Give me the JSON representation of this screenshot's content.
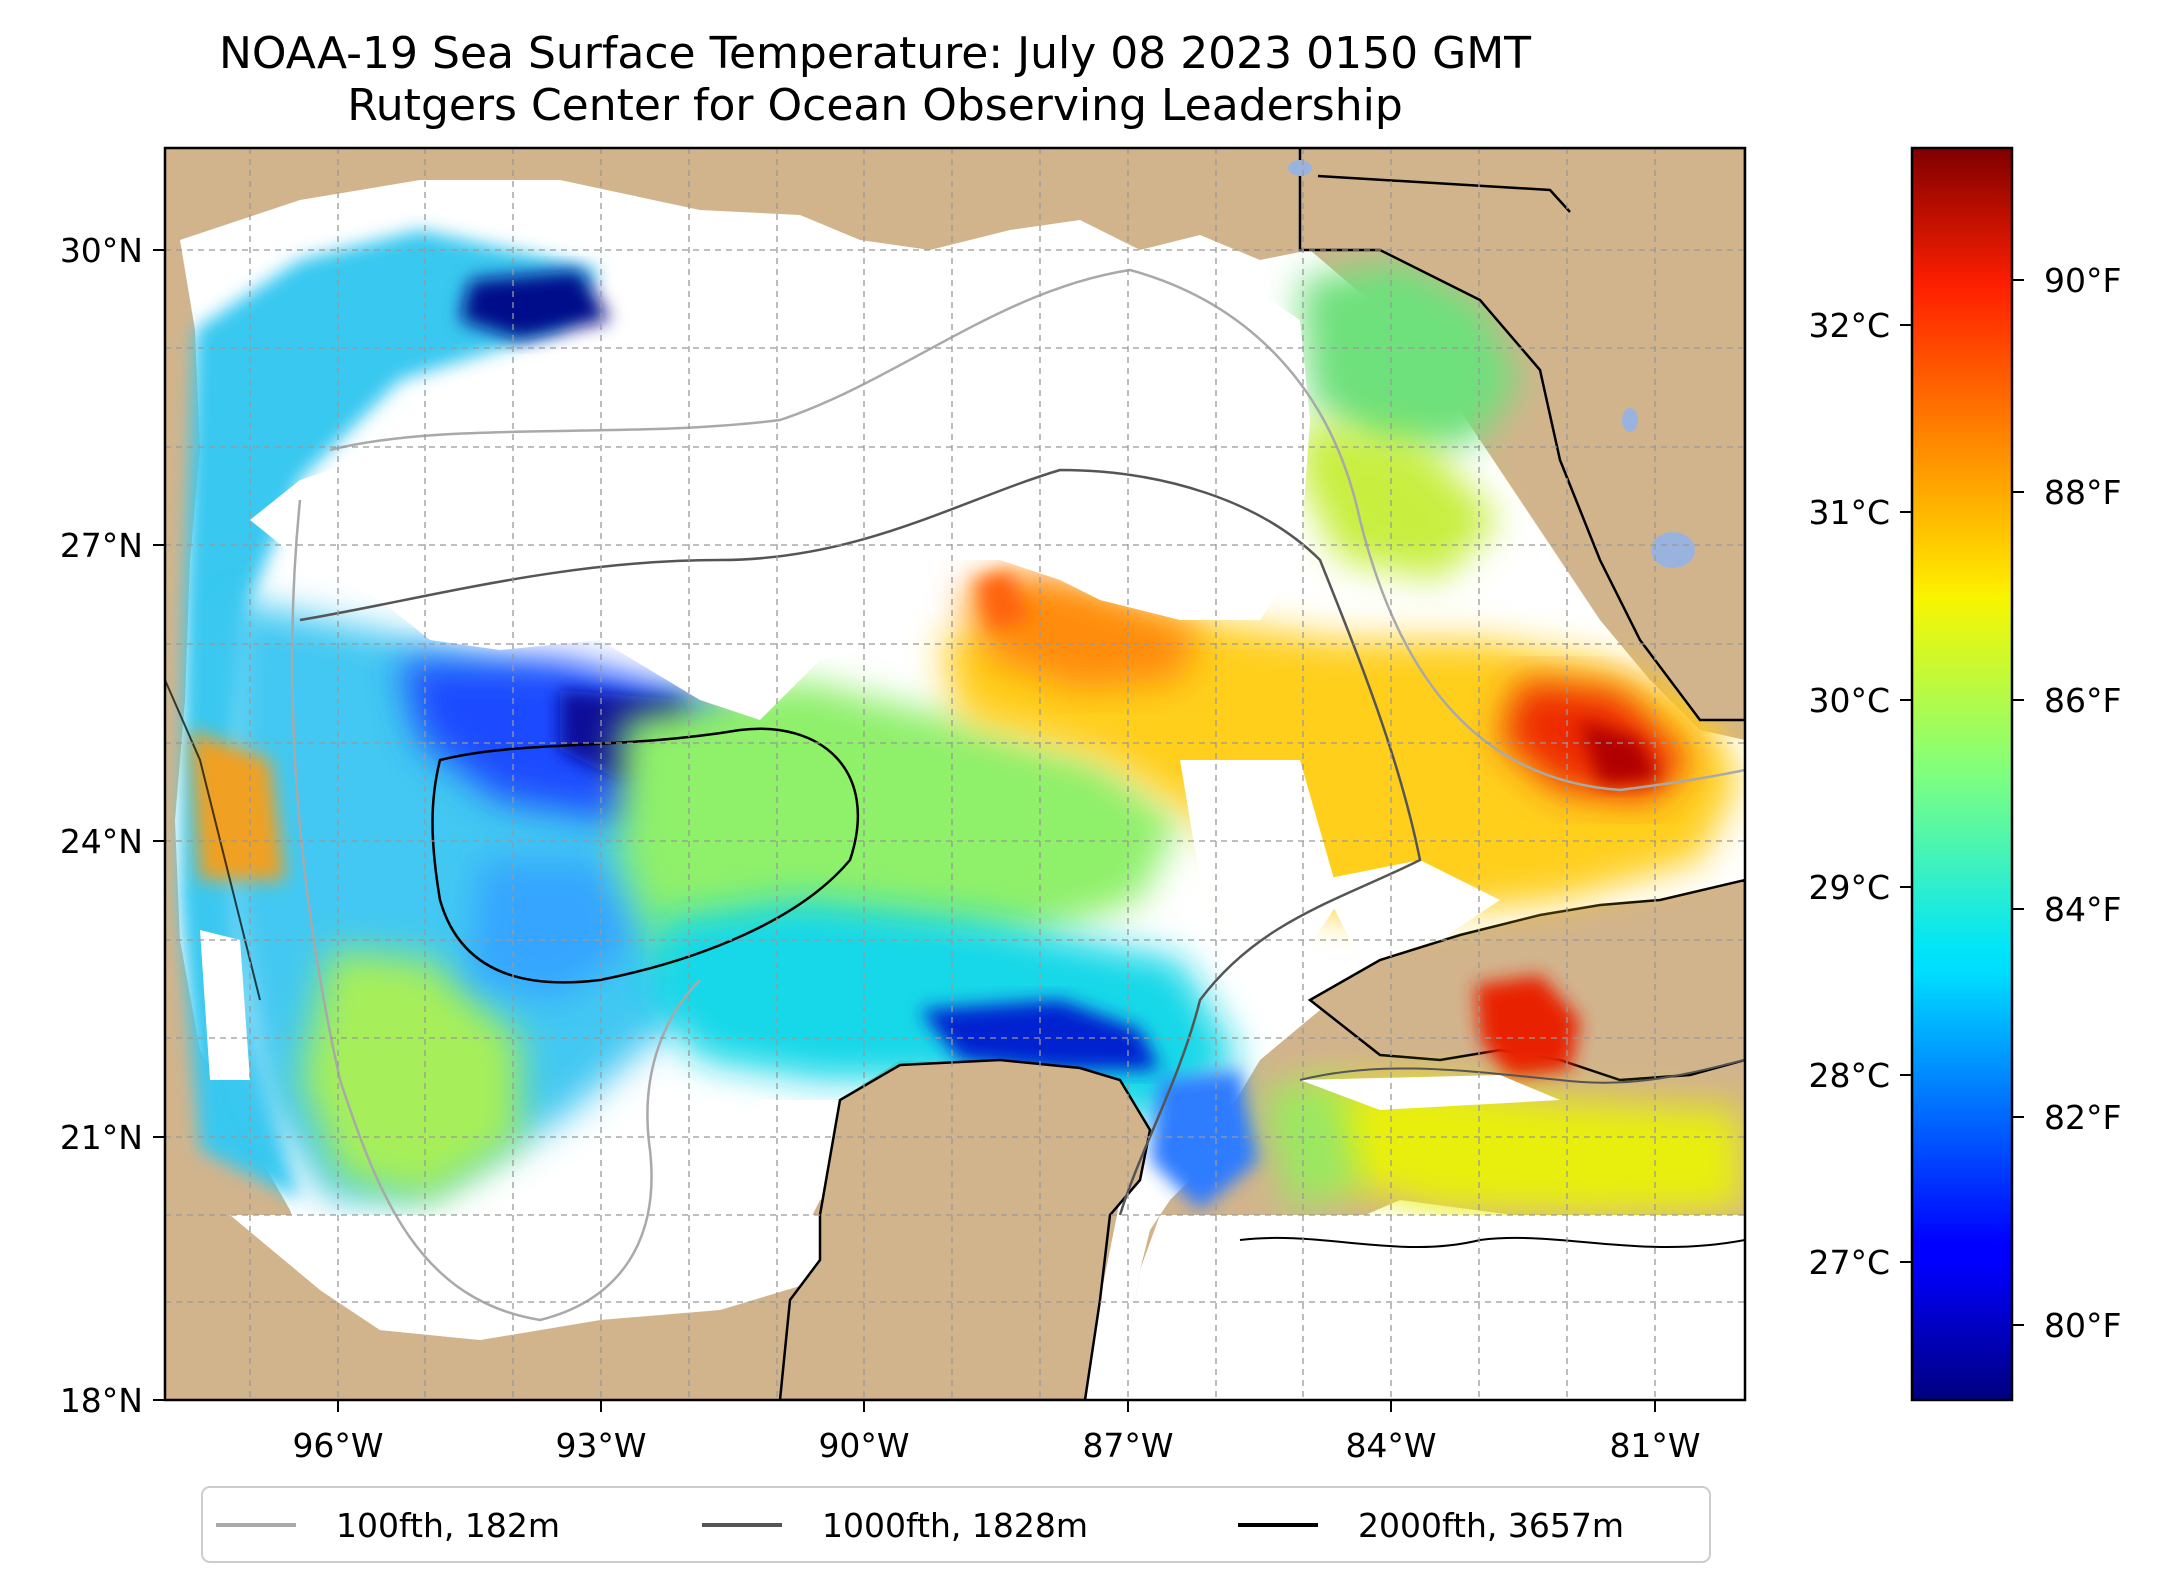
{
  "title": "NOAA-19 Sea Surface Temperature: July 08 2023 0150 GMT",
  "subtitle": "Rutgers Center for Ocean Observing Leadership",
  "map": {
    "lat_ticks": [
      "30°N",
      "27°N",
      "24°N",
      "21°N",
      "18°N"
    ],
    "lon_ticks": [
      "96°W",
      "93°W",
      "90°W",
      "87°W",
      "84°W",
      "81°W"
    ],
    "lon_range": [
      -98.0,
      -80.0
    ],
    "lat_range": [
      18.0,
      31.0
    ],
    "land_color": "#d2b48c",
    "lake_color": "#9ab3de"
  },
  "colorbar": {
    "colormap": "jet",
    "celsius_ticks": [
      "32°C",
      "31°C",
      "30°C",
      "29°C",
      "28°C",
      "27°C"
    ],
    "fahrenheit_ticks": [
      "90°F",
      "88°F",
      "86°F",
      "84°F",
      "82°F",
      "80°F"
    ]
  },
  "legend": [
    {
      "label": "100fth, 182m",
      "color": "#a9a9a9"
    },
    {
      "label": "1000fth, 1828m",
      "color": "#555555"
    },
    {
      "label": "2000fth, 3657m",
      "color": "#000000"
    }
  ]
}
